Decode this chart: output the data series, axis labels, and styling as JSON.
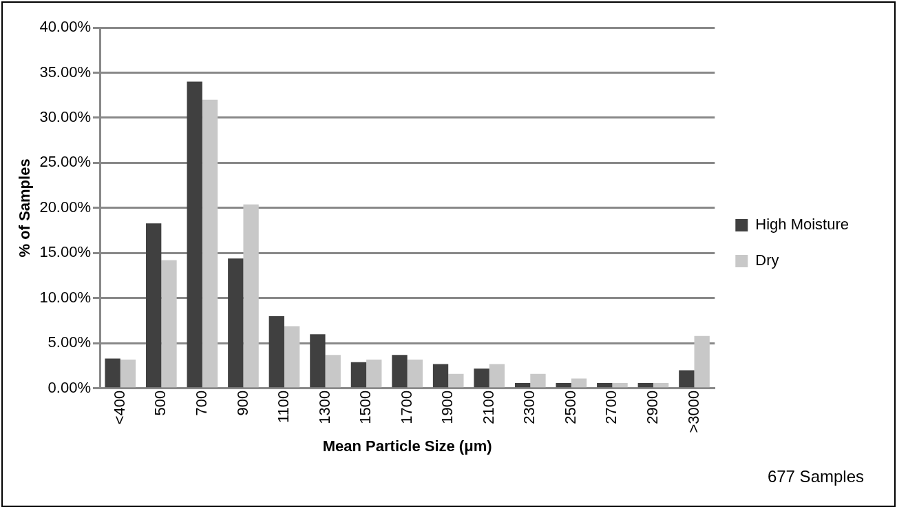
{
  "chart_data": {
    "type": "bar",
    "xlabel": "Mean Particle Size (μm)",
    "ylabel": "% of Samples",
    "categories": [
      "<400",
      "500",
      "700",
      "900",
      "1100",
      "1300",
      "1500",
      "1700",
      "1900",
      "2100",
      "2300",
      "2500",
      "2700",
      "2900",
      ">3000"
    ],
    "series": [
      {
        "name": "High Moisture",
        "color": "#404040",
        "values": [
          3.3,
          18.3,
          34,
          14.4,
          8,
          6,
          2.9,
          3.7,
          2.7,
          2.2,
          0.6,
          0.6,
          0.6,
          0.6,
          2.0
        ]
      },
      {
        "name": "Dry",
        "color": "#c8c8c8",
        "values": [
          3.2,
          14.2,
          32,
          20.4,
          6.9,
          3.7,
          3.2,
          3.2,
          1.6,
          2.7,
          1.6,
          1.1,
          0.6,
          0.6,
          5.8
        ]
      }
    ],
    "ylim": [
      0,
      40
    ],
    "yticks": [
      {
        "value": 0,
        "label": "0.00%"
      },
      {
        "value": 5,
        "label": "5.00%"
      },
      {
        "value": 10,
        "label": "10.00%"
      },
      {
        "value": 15,
        "label": "15.00%"
      },
      {
        "value": 20,
        "label": "20.00%"
      },
      {
        "value": 25,
        "label": "25.00%"
      },
      {
        "value": 30,
        "label": "30.00%"
      },
      {
        "value": 35,
        "label": "35.00%"
      },
      {
        "value": 40,
        "label": "40.00%"
      }
    ],
    "grid": "y",
    "legend": "right",
    "annotations": [
      "677 Samples"
    ]
  }
}
